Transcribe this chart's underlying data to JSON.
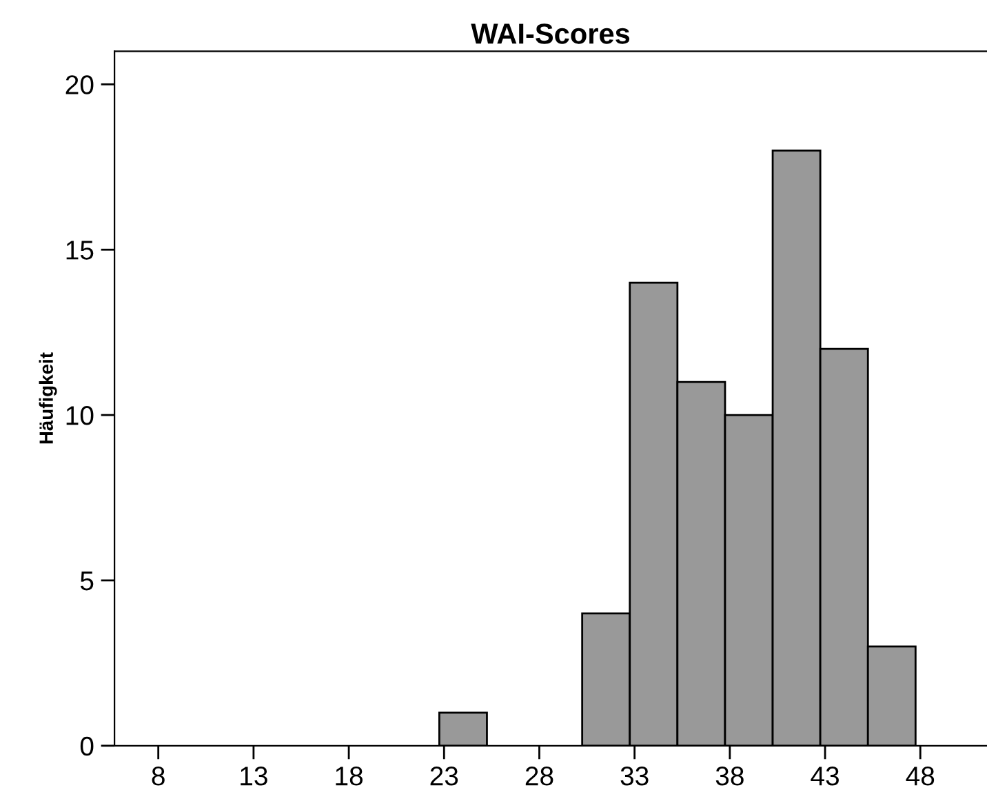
{
  "chart_data": {
    "type": "histogram",
    "title": "WAI-Scores",
    "ylabel": "Häufigkeit",
    "bins": [
      22.75,
      25.25,
      27.75,
      30.25,
      32.75,
      35.25,
      37.75,
      40.25,
      42.75,
      45.25,
      47.75
    ],
    "values": [
      1,
      0,
      0,
      4,
      14,
      11,
      10,
      18,
      12,
      3
    ],
    "color": "#999999",
    "xlim": [
      5.7,
      51.5
    ],
    "xticks": [
      8,
      13,
      18,
      23,
      28,
      33,
      38,
      43,
      48
    ],
    "ylim": [
      0,
      21
    ],
    "yticks": [
      0,
      5,
      10,
      15,
      20
    ],
    "grid": false
  }
}
